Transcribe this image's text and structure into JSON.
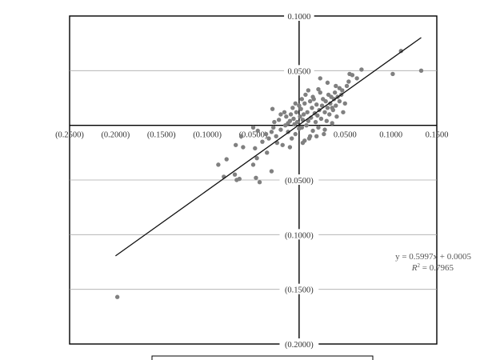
{
  "chart_data": {
    "type": "scatter",
    "xlim": [
      -0.25,
      0.15
    ],
    "ylim": [
      -0.2,
      0.1
    ],
    "x_ticks": [
      "(0.2500)",
      "(0.2000)",
      "(0.1500)",
      "(0.1000)",
      "(0.0500)",
      "",
      "0.0500",
      "0.1000",
      "0.1500"
    ],
    "x_tick_values": [
      -0.25,
      -0.2,
      -0.15,
      -0.1,
      -0.05,
      0,
      0.05,
      0.1,
      0.15
    ],
    "y_ticks": [
      "0.1000",
      "0.0500",
      "(0.0500)",
      "(0.1000)",
      "(0.1500)",
      "(0.2000)"
    ],
    "y_tick_values": [
      0.1,
      0.05,
      -0.05,
      -0.1,
      -0.15,
      -0.2
    ],
    "grid": "horizontal",
    "trendline": {
      "slope": 0.5997,
      "intercept": 0.0005,
      "x_range": [
        -0.2,
        0.133
      ]
    },
    "annotation": {
      "equation_text": "y = 0.5997x + 0.0005",
      "r2_label": "R",
      "r2_value_text": " = 0.7965"
    },
    "colors": {
      "points": "#808080",
      "line": "#111111",
      "grid": "#aaaaaa",
      "axis": "#000000"
    },
    "points": [
      [
        -0.198,
        -0.157
      ],
      [
        -0.088,
        -0.036
      ],
      [
        -0.079,
        -0.031
      ],
      [
        -0.082,
        -0.047
      ],
      [
        -0.07,
        -0.045
      ],
      [
        -0.068,
        -0.05
      ],
      [
        -0.065,
        -0.049
      ],
      [
        -0.069,
        -0.018
      ],
      [
        -0.061,
        -0.02
      ],
      [
        -0.063,
        -0.01
      ],
      [
        -0.05,
        -0.036
      ],
      [
        -0.046,
        -0.03
      ],
      [
        -0.047,
        -0.048
      ],
      [
        -0.043,
        -0.052
      ],
      [
        -0.03,
        -0.042
      ],
      [
        -0.048,
        -0.021
      ],
      [
        -0.04,
        -0.015
      ],
      [
        -0.036,
        -0.008
      ],
      [
        -0.045,
        -0.005
      ],
      [
        -0.033,
        -0.012
      ],
      [
        -0.03,
        -0.006
      ],
      [
        -0.028,
        -0.002
      ],
      [
        -0.025,
        -0.01
      ],
      [
        -0.027,
        0.003
      ],
      [
        -0.022,
        0.005
      ],
      [
        -0.02,
        -0.004
      ],
      [
        -0.018,
        -0.018
      ],
      [
        -0.015,
        0.0
      ],
      [
        -0.014,
        0.008
      ],
      [
        -0.012,
        -0.006
      ],
      [
        -0.01,
        0.004
      ],
      [
        -0.009,
        0.01
      ],
      [
        -0.008,
        -0.012
      ],
      [
        -0.006,
        0.006
      ],
      [
        -0.005,
        0.001
      ],
      [
        -0.004,
        -0.008
      ],
      [
        -0.003,
        0.012
      ],
      [
        -0.002,
        0.003
      ],
      [
        0.0,
        -0.003
      ],
      [
        0.001,
        0.008
      ],
      [
        0.002,
        0.015
      ],
      [
        0.003,
        -0.002
      ],
      [
        0.004,
        0.005
      ],
      [
        0.005,
        0.01
      ],
      [
        0.006,
        0.02
      ],
      [
        0.007,
        0.028
      ],
      [
        0.008,
        0.0
      ],
      [
        0.009,
        0.012
      ],
      [
        0.01,
        0.004
      ],
      [
        0.011,
        -0.012
      ],
      [
        0.012,
        0.022
      ],
      [
        0.013,
        0.007
      ],
      [
        0.014,
        0.016
      ],
      [
        0.015,
        -0.005
      ],
      [
        0.016,
        0.024
      ],
      [
        0.017,
        0.011
      ],
      [
        0.018,
        0.003
      ],
      [
        0.019,
        0.019
      ],
      [
        0.02,
        0.009
      ],
      [
        0.021,
        -0.002
      ],
      [
        0.022,
        0.014
      ],
      [
        0.023,
        0.03
      ],
      [
        0.024,
        0.006
      ],
      [
        0.025,
        0.018
      ],
      [
        0.026,
        0.024
      ],
      [
        0.027,
        -0.008
      ],
      [
        0.028,
        0.012
      ],
      [
        0.029,
        0.022
      ],
      [
        0.03,
        0.004
      ],
      [
        0.031,
        0.016
      ],
      [
        0.032,
        0.028
      ],
      [
        0.033,
        0.01
      ],
      [
        0.034,
        0.02
      ],
      [
        0.035,
        0.026
      ],
      [
        0.036,
        0.002
      ],
      [
        0.037,
        0.014
      ],
      [
        0.038,
        0.024
      ],
      [
        0.039,
        0.03
      ],
      [
        0.04,
        0.018
      ],
      [
        0.041,
        0.008
      ],
      [
        0.042,
        0.026
      ],
      [
        0.044,
        0.022
      ],
      [
        0.046,
        0.028
      ],
      [
        0.048,
        0.012
      ],
      [
        0.05,
        0.02
      ],
      [
        0.052,
        0.036
      ],
      [
        0.054,
        0.04
      ],
      [
        0.055,
        0.047
      ],
      [
        0.058,
        0.046
      ],
      [
        0.063,
        0.043
      ],
      [
        0.068,
        0.051
      ],
      [
        0.102,
        0.047
      ],
      [
        0.111,
        0.068
      ],
      [
        0.133,
        0.05
      ],
      [
        -0.01,
        -0.02
      ],
      [
        -0.02,
        0.01
      ],
      [
        0.0,
        0.018
      ],
      [
        -0.007,
        0.016
      ],
      [
        0.012,
        -0.01
      ],
      [
        -0.035,
        -0.025
      ],
      [
        0.023,
        0.043
      ],
      [
        0.031,
        0.039
      ],
      [
        -0.024,
        -0.016
      ],
      [
        0.006,
        -0.014
      ],
      [
        -0.016,
        0.012
      ],
      [
        0.015,
        0.026
      ],
      [
        0.044,
        0.034
      ],
      [
        0.036,
        0.016
      ],
      [
        -0.004,
        0.02
      ],
      [
        0.01,
        0.032
      ],
      [
        -0.012,
        0.002
      ],
      [
        0.028,
        -0.004
      ],
      [
        0.047,
        0.032
      ],
      [
        0.019,
        -0.01
      ],
      [
        0.004,
        -0.016
      ],
      [
        -0.05,
        -0.002
      ],
      [
        -0.029,
        0.015
      ],
      [
        0.003,
        0.024
      ],
      [
        0.04,
        0.036
      ],
      [
        0.021,
        0.033
      ]
    ]
  }
}
